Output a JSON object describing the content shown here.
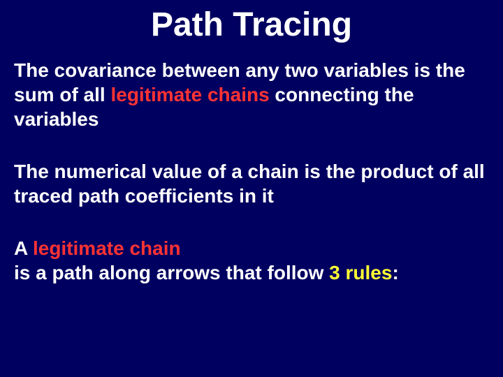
{
  "slide": {
    "title": "Path Tracing",
    "background_color": "#000060",
    "title_color": "#ffffff",
    "title_fontsize": 48,
    "body_color": "#ffffff",
    "body_fontsize": 28,
    "highlight_red": "#ff3333",
    "highlight_yellow": "#ffff33",
    "p1_part1": "The covariance between any two variables is the sum of all ",
    "p1_highlight": "legitimate chains",
    "p1_part2": " connecting the variables",
    "p2": "The numerical value of a chain is the product of all traced path coefficients in it",
    "p3_part1": "A ",
    "p3_highlight1": "legitimate chain",
    "p3_part2": "is a path along arrows that follow ",
    "p3_highlight2": "3 rules",
    "p3_part3": ":"
  }
}
